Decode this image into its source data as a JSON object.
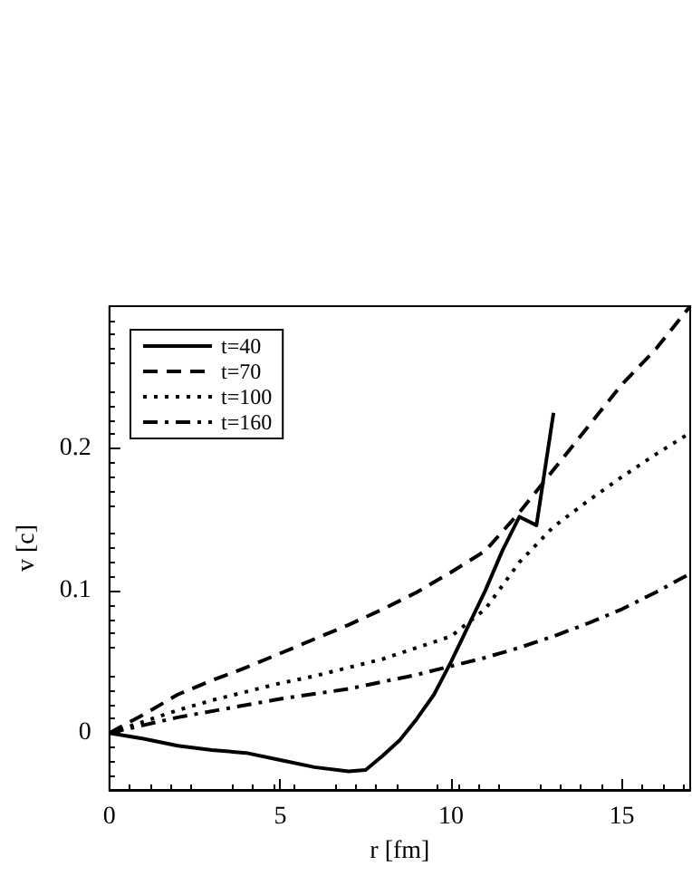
{
  "chart_data": {
    "type": "line",
    "xlabel": "r [fm]",
    "ylabel": "v [c]",
    "xlim": [
      0,
      17
    ],
    "xticks": [
      0,
      5,
      10,
      15
    ],
    "ylim": [
      -0.04,
      0.3
    ],
    "yticks": [
      0,
      0.1,
      0.2
    ],
    "grid": false,
    "legend": "top left",
    "marker": "none",
    "series": [
      {
        "name": "t=40",
        "color": "#000000",
        "line_style": "solid",
        "x": [
          0,
          1,
          2,
          3,
          4,
          5,
          6,
          7,
          7.5,
          8,
          8.5,
          9,
          9.5,
          10,
          10.5,
          11,
          11.5,
          12,
          12.5,
          13
        ],
        "values": [
          0,
          -0.004,
          -0.009,
          -0.012,
          -0.014,
          -0.019,
          -0.024,
          -0.027,
          -0.026,
          -0.016,
          -0.005,
          0.01,
          0.027,
          0.05,
          0.075,
          0.1,
          0.128,
          0.152,
          0.146,
          0.225
        ]
      },
      {
        "name": "t=70",
        "color": "#000000",
        "line_style": "dashed",
        "x": [
          0,
          1,
          2,
          3,
          4,
          5,
          6,
          7,
          8,
          9,
          10,
          11,
          12,
          13,
          14,
          15,
          16,
          17
        ],
        "values": [
          0,
          0.013,
          0.027,
          0.037,
          0.046,
          0.056,
          0.066,
          0.076,
          0.087,
          0.099,
          0.113,
          0.128,
          0.155,
          0.185,
          0.215,
          0.245,
          0.27,
          0.3
        ]
      },
      {
        "name": "t=100",
        "color": "#000000",
        "line_style": "dotted",
        "x": [
          0,
          1,
          2,
          3,
          4,
          5,
          6,
          7,
          8,
          9,
          10,
          11,
          12,
          13,
          14,
          15,
          16,
          17
        ],
        "values": [
          0,
          0.008,
          0.016,
          0.023,
          0.029,
          0.035,
          0.04,
          0.046,
          0.052,
          0.06,
          0.068,
          0.087,
          0.12,
          0.145,
          0.163,
          0.18,
          0.196,
          0.211
        ]
      },
      {
        "name": "t=160",
        "color": "#000000",
        "line_style": "dashdot",
        "x": [
          0,
          2,
          5,
          7,
          8,
          9,
          10,
          11,
          12,
          13,
          14,
          15,
          16,
          17
        ],
        "values": [
          0,
          0.011,
          0.024,
          0.031,
          0.036,
          0.041,
          0.047,
          0.053,
          0.06,
          0.068,
          0.077,
          0.087,
          0.099,
          0.112
        ]
      }
    ]
  }
}
